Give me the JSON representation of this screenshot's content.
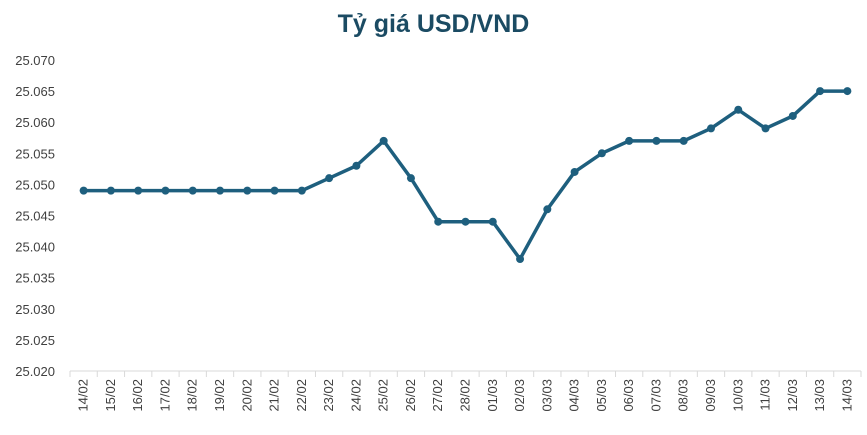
{
  "chart_data": {
    "type": "line",
    "title": "Tỷ giá USD/VND",
    "xlabel": "",
    "ylabel": "",
    "categories": [
      "14/02",
      "15/02",
      "16/02",
      "17/02",
      "18/02",
      "19/02",
      "20/02",
      "21/02",
      "22/02",
      "23/02",
      "24/02",
      "25/02",
      "26/02",
      "27/02",
      "28/02",
      "01/03",
      "02/03",
      "03/03",
      "04/03",
      "05/03",
      "06/03",
      "07/03",
      "08/03",
      "09/03",
      "10/03",
      "11/03",
      "12/03",
      "13/03",
      "14/03"
    ],
    "series": [
      {
        "values": [
          25049,
          25049,
          25049,
          25049,
          25049,
          25049,
          25049,
          25049,
          25049,
          25051,
          25053,
          25057,
          25051,
          25044,
          25044,
          25044,
          25038,
          25046,
          25052,
          25055,
          25057,
          25057,
          25057,
          25059,
          25062,
          25059,
          25061,
          25065,
          25065
        ]
      }
    ],
    "ylim": [
      25020,
      25070
    ],
    "yticks": [
      "25.020",
      "25.025",
      "25.030",
      "25.035",
      "25.040",
      "25.045",
      "25.050",
      "25.055",
      "25.060",
      "25.065",
      "25.070"
    ],
    "grid": false,
    "legend": "none",
    "line_color": "#1e5f7e",
    "marker_color": "#1e5f7e"
  }
}
